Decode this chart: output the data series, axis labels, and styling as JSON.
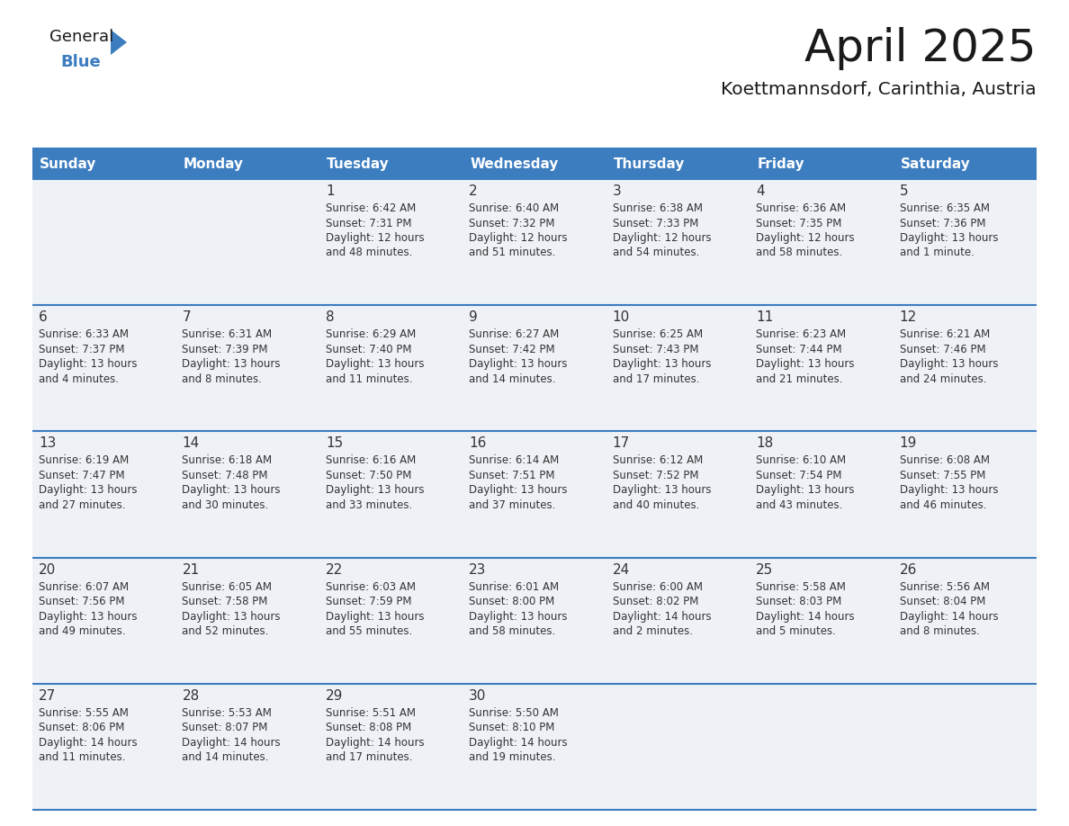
{
  "title": "April 2025",
  "subtitle": "Koettmannsdorf, Carinthia, Austria",
  "header_bg_color": "#3c7dc0",
  "header_text_color": "#ffffff",
  "cell_bg_color": "#eef2f7",
  "border_color": "#3c7dc0",
  "text_color": "#333333",
  "days_of_week": [
    "Sunday",
    "Monday",
    "Tuesday",
    "Wednesday",
    "Thursday",
    "Friday",
    "Saturday"
  ],
  "weeks": [
    [
      {
        "day": "",
        "info": ""
      },
      {
        "day": "",
        "info": ""
      },
      {
        "day": "1",
        "info": "Sunrise: 6:42 AM\nSunset: 7:31 PM\nDaylight: 12 hours\nand 48 minutes."
      },
      {
        "day": "2",
        "info": "Sunrise: 6:40 AM\nSunset: 7:32 PM\nDaylight: 12 hours\nand 51 minutes."
      },
      {
        "day": "3",
        "info": "Sunrise: 6:38 AM\nSunset: 7:33 PM\nDaylight: 12 hours\nand 54 minutes."
      },
      {
        "day": "4",
        "info": "Sunrise: 6:36 AM\nSunset: 7:35 PM\nDaylight: 12 hours\nand 58 minutes."
      },
      {
        "day": "5",
        "info": "Sunrise: 6:35 AM\nSunset: 7:36 PM\nDaylight: 13 hours\nand 1 minute."
      }
    ],
    [
      {
        "day": "6",
        "info": "Sunrise: 6:33 AM\nSunset: 7:37 PM\nDaylight: 13 hours\nand 4 minutes."
      },
      {
        "day": "7",
        "info": "Sunrise: 6:31 AM\nSunset: 7:39 PM\nDaylight: 13 hours\nand 8 minutes."
      },
      {
        "day": "8",
        "info": "Sunrise: 6:29 AM\nSunset: 7:40 PM\nDaylight: 13 hours\nand 11 minutes."
      },
      {
        "day": "9",
        "info": "Sunrise: 6:27 AM\nSunset: 7:42 PM\nDaylight: 13 hours\nand 14 minutes."
      },
      {
        "day": "10",
        "info": "Sunrise: 6:25 AM\nSunset: 7:43 PM\nDaylight: 13 hours\nand 17 minutes."
      },
      {
        "day": "11",
        "info": "Sunrise: 6:23 AM\nSunset: 7:44 PM\nDaylight: 13 hours\nand 21 minutes."
      },
      {
        "day": "12",
        "info": "Sunrise: 6:21 AM\nSunset: 7:46 PM\nDaylight: 13 hours\nand 24 minutes."
      }
    ],
    [
      {
        "day": "13",
        "info": "Sunrise: 6:19 AM\nSunset: 7:47 PM\nDaylight: 13 hours\nand 27 minutes."
      },
      {
        "day": "14",
        "info": "Sunrise: 6:18 AM\nSunset: 7:48 PM\nDaylight: 13 hours\nand 30 minutes."
      },
      {
        "day": "15",
        "info": "Sunrise: 6:16 AM\nSunset: 7:50 PM\nDaylight: 13 hours\nand 33 minutes."
      },
      {
        "day": "16",
        "info": "Sunrise: 6:14 AM\nSunset: 7:51 PM\nDaylight: 13 hours\nand 37 minutes."
      },
      {
        "day": "17",
        "info": "Sunrise: 6:12 AM\nSunset: 7:52 PM\nDaylight: 13 hours\nand 40 minutes."
      },
      {
        "day": "18",
        "info": "Sunrise: 6:10 AM\nSunset: 7:54 PM\nDaylight: 13 hours\nand 43 minutes."
      },
      {
        "day": "19",
        "info": "Sunrise: 6:08 AM\nSunset: 7:55 PM\nDaylight: 13 hours\nand 46 minutes."
      }
    ],
    [
      {
        "day": "20",
        "info": "Sunrise: 6:07 AM\nSunset: 7:56 PM\nDaylight: 13 hours\nand 49 minutes."
      },
      {
        "day": "21",
        "info": "Sunrise: 6:05 AM\nSunset: 7:58 PM\nDaylight: 13 hours\nand 52 minutes."
      },
      {
        "day": "22",
        "info": "Sunrise: 6:03 AM\nSunset: 7:59 PM\nDaylight: 13 hours\nand 55 minutes."
      },
      {
        "day": "23",
        "info": "Sunrise: 6:01 AM\nSunset: 8:00 PM\nDaylight: 13 hours\nand 58 minutes."
      },
      {
        "day": "24",
        "info": "Sunrise: 6:00 AM\nSunset: 8:02 PM\nDaylight: 14 hours\nand 2 minutes."
      },
      {
        "day": "25",
        "info": "Sunrise: 5:58 AM\nSunset: 8:03 PM\nDaylight: 14 hours\nand 5 minutes."
      },
      {
        "day": "26",
        "info": "Sunrise: 5:56 AM\nSunset: 8:04 PM\nDaylight: 14 hours\nand 8 minutes."
      }
    ],
    [
      {
        "day": "27",
        "info": "Sunrise: 5:55 AM\nSunset: 8:06 PM\nDaylight: 14 hours\nand 11 minutes."
      },
      {
        "day": "28",
        "info": "Sunrise: 5:53 AM\nSunset: 8:07 PM\nDaylight: 14 hours\nand 14 minutes."
      },
      {
        "day": "29",
        "info": "Sunrise: 5:51 AM\nSunset: 8:08 PM\nDaylight: 14 hours\nand 17 minutes."
      },
      {
        "day": "30",
        "info": "Sunrise: 5:50 AM\nSunset: 8:10 PM\nDaylight: 14 hours\nand 19 minutes."
      },
      {
        "day": "",
        "info": ""
      },
      {
        "day": "",
        "info": ""
      },
      {
        "day": "",
        "info": ""
      }
    ]
  ],
  "logo_text_general": "General",
  "logo_text_blue": "Blue",
  "logo_color_general": "#1a1a1a",
  "logo_color_blue": "#3c7dc0",
  "logo_triangle_color": "#3c7dc0",
  "fig_width": 11.88,
  "fig_height": 9.18,
  "dpi": 100
}
